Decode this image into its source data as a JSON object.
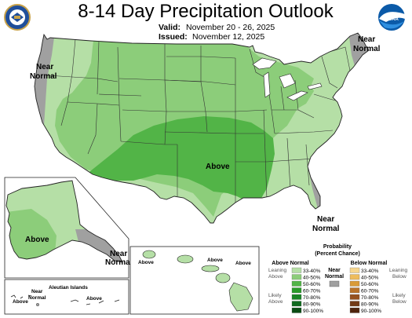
{
  "header": {
    "title": "8-14 Day Precipitation Outlook",
    "valid_label": "Valid:",
    "valid_value": "November 20 - 26, 2025",
    "issued_label": "Issued:",
    "issued_value": "November 12, 2025"
  },
  "logos": {
    "left": "noaa-doc-seal",
    "right": "noaa-logo",
    "right_text": "NOAA"
  },
  "regions": {
    "near_normal_west_1": "Near",
    "near_normal_west_2": "Normal",
    "near_normal_ne_1": "Near",
    "near_normal_ne_2": "Normal",
    "near_normal_se_1": "Near",
    "near_normal_se_2": "Normal",
    "above_conus": "Above",
    "above_alaska": "Above",
    "near_normal_ak_1": "Near",
    "near_normal_ak_2": "Normal",
    "aleutian_label": "Aleutian Islands",
    "aleutian_near_1": "Near",
    "aleutian_near_2": "Normal",
    "aleutian_above_1": "Above",
    "aleutian_above_2": "Above",
    "hawaii_above_1": "Above",
    "hawaii_above_2": "Above",
    "hawaii_above_3": "Above"
  },
  "colors": {
    "ocean": "#ffffff",
    "land_base": "#ffffff",
    "near_normal": "#a0a0a0",
    "above_33_40": "#b5dfa6",
    "above_40_50": "#8ccd7a",
    "above_50_60": "#52b447",
    "above_60_70": "#2a9a2a",
    "above_70_80": "#1a8526",
    "above_80_90": "#0f6a1e",
    "above_90_100": "#0a4c14",
    "below_33_40": "#f6d68e",
    "below_40_50": "#eebc5c",
    "below_50_60": "#d99b38",
    "below_60_70": "#b9732a",
    "below_70_80": "#96521f",
    "below_80_90": "#733a16",
    "below_90_100": "#4f240d"
  },
  "legend": {
    "title_1": "Probability",
    "title_2": "(Percent Chance)",
    "above_header": "Above Normal",
    "below_header": "Below Normal",
    "near_header_1": "Near",
    "near_header_2": "Normal",
    "leaning_above_1": "Leaning",
    "leaning_above_2": "Above",
    "likely_above_1": "Likely",
    "likely_above_2": "Above",
    "leaning_below_1": "Leaning",
    "leaning_below_2": "Below",
    "likely_below_1": "Likely",
    "likely_below_2": "Below",
    "above_ranges": [
      "33-40%",
      "40-50%",
      "50-60%",
      "60-70%",
      "70-80%",
      "80-90%",
      "90-100%"
    ],
    "below_ranges": [
      "33-40%",
      "40-50%",
      "50-60%",
      "60-70%",
      "70-80%",
      "80-90%",
      "90-100%"
    ]
  }
}
